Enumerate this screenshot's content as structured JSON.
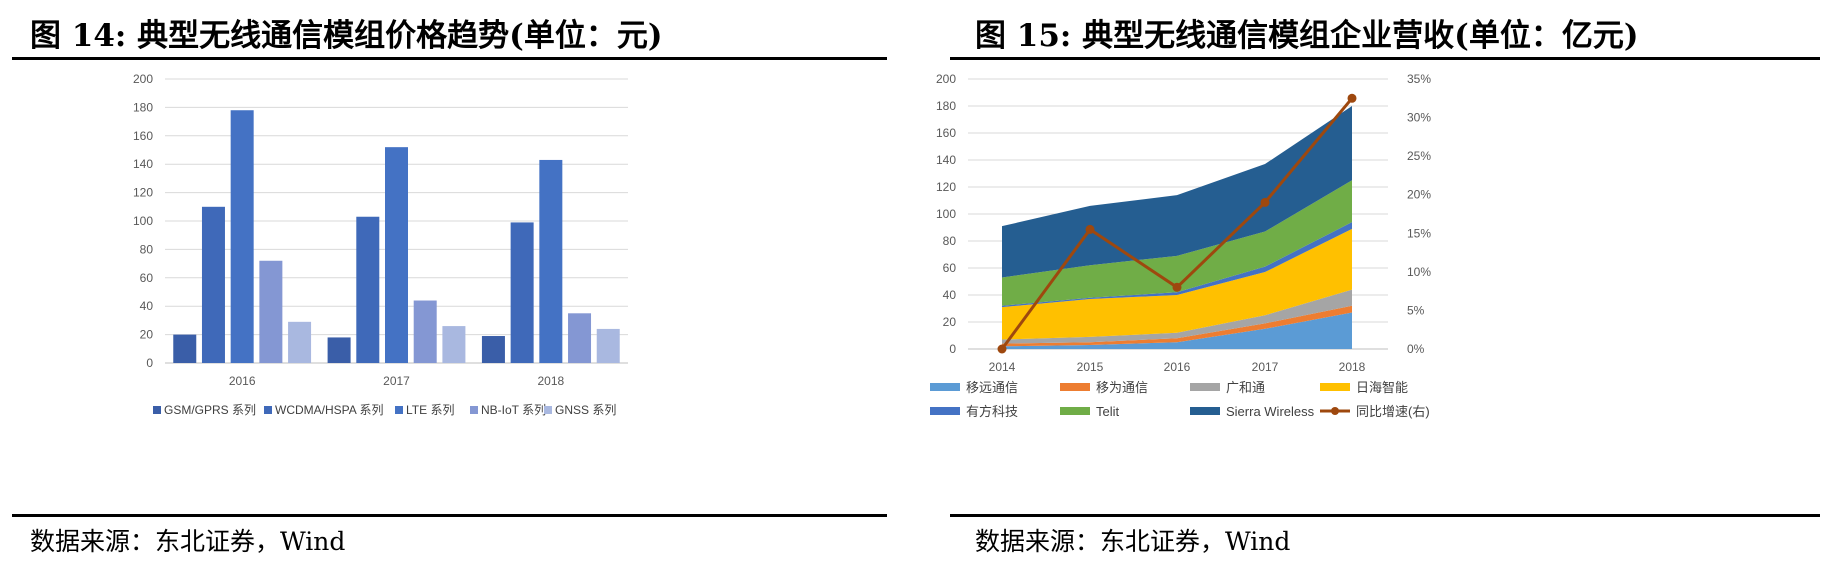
{
  "left": {
    "title": "图 14: 典型无线通信模组价格趋势(单位：元)",
    "source": "数据来源：东北证券，Wind"
  },
  "right": {
    "title": "图 15: 典型无线通信模组企业营收(单位：亿元)",
    "source": "数据来源：东北证券，Wind"
  },
  "chart_data": [
    {
      "type": "bar",
      "categories": [
        "2016",
        "2017",
        "2018"
      ],
      "ylim": [
        0,
        200
      ],
      "yticks": [
        0,
        20,
        40,
        60,
        80,
        100,
        120,
        140,
        160,
        180,
        200
      ],
      "grid": true,
      "legend_position": "bottom",
      "series": [
        {
          "name": "GSM/GPRS 系列",
          "values": [
            20,
            18,
            19
          ],
          "color": "#3a5ea8"
        },
        {
          "name": "WCDMA/HSPA 系列",
          "values": [
            110,
            103,
            99
          ],
          "color": "#3f69b9"
        },
        {
          "name": "LTE 系列",
          "values": [
            178,
            152,
            143
          ],
          "color": "#4472c4"
        },
        {
          "name": "NB-IoT 系列",
          "values": [
            72,
            44,
            35
          ],
          "color": "#8497d3"
        },
        {
          "name": "GNSS 系列",
          "values": [
            29,
            26,
            24
          ],
          "color": "#a9b8e0"
        }
      ]
    },
    {
      "type": "area",
      "stacked": true,
      "categories": [
        "2014",
        "2015",
        "2016",
        "2017",
        "2018"
      ],
      "ylim": [
        0,
        200
      ],
      "yticks": [
        0,
        20,
        40,
        60,
        80,
        100,
        120,
        140,
        160,
        180,
        200
      ],
      "y2lim": [
        0,
        35
      ],
      "y2ticks": [
        "0%",
        "5%",
        "10%",
        "15%",
        "20%",
        "25%",
        "30%",
        "35%"
      ],
      "grid": true,
      "legend_position": "bottom",
      "series": [
        {
          "name": "移远通信",
          "values": [
            2,
            3,
            5,
            15,
            27
          ],
          "color": "#5b9bd5"
        },
        {
          "name": "移为通信",
          "values": [
            2,
            2,
            3,
            4,
            5
          ],
          "color": "#ed7d31"
        },
        {
          "name": "广和通",
          "values": [
            3,
            4,
            4,
            6,
            12
          ],
          "color": "#a5a5a5"
        },
        {
          "name": "日海智能",
          "values": [
            24,
            28,
            28,
            32,
            45
          ],
          "color": "#ffc000"
        },
        {
          "name": "有方科技",
          "values": [
            1,
            1,
            2,
            4,
            5
          ],
          "color": "#4472c4"
        },
        {
          "name": "Telit",
          "values": [
            21,
            24,
            27,
            26,
            31
          ],
          "color": "#70ad47"
        },
        {
          "name": "Sierra Wireless",
          "values": [
            38,
            44,
            45,
            50,
            55
          ],
          "color": "#255e91"
        }
      ],
      "line_series": {
        "name": "同比增速(右)",
        "axis": "right",
        "values": [
          0,
          15.5,
          8,
          19,
          32.5
        ],
        "color": "#9e480e"
      }
    }
  ]
}
